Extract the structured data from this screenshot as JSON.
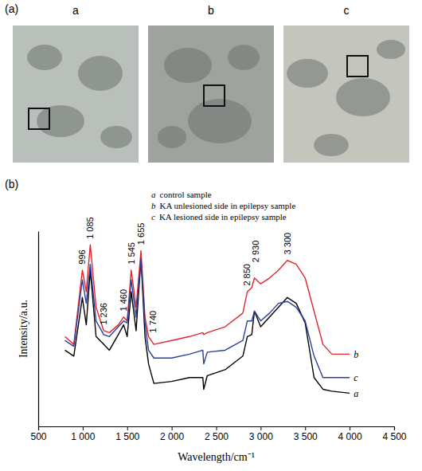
{
  "images": {
    "label": "(a)",
    "panels": [
      "a",
      "b",
      "c"
    ]
  },
  "chart_data": {
    "type": "line",
    "panel_label": "(b)",
    "x_label": "Wavelength/cm⁻¹",
    "y_label": "Intensity/a.u.",
    "xlim": [
      500,
      4500
    ],
    "xticks": [
      500,
      {
        "value": 1000,
        "label": "1 000"
      },
      {
        "value": 1500,
        "label": "1 500"
      },
      {
        "value": 2000,
        "label": "2 000"
      },
      {
        "value": 2500,
        "label": "2 500"
      },
      {
        "value": 3000,
        "label": "3 000"
      },
      {
        "value": 3500,
        "label": "3 500"
      },
      {
        "value": 4000,
        "label": "4 000"
      },
      {
        "value": 4500,
        "label": "4 500"
      }
    ],
    "ylim": [
      0,
      100
    ],
    "tick_labels": "x",
    "grid": false,
    "legend": "top",
    "x": [
      800,
      900,
      996,
      1040,
      1085,
      1150,
      1236,
      1300,
      1400,
      1460,
      1500,
      1545,
      1600,
      1655,
      1700,
      1740,
      1800,
      2000,
      2200,
      2350,
      2360,
      2400,
      2600,
      2800,
      2850,
      2900,
      2930,
      3000,
      3100,
      3200,
      3300,
      3400,
      3500,
      3600,
      3700,
      3800,
      4000
    ],
    "series": [
      {
        "key": "a",
        "name": "control sample",
        "color": "#000000",
        "values": [
          39,
          36,
          66,
          52,
          80,
          46,
          42,
          39,
          47,
          52,
          46,
          69,
          49,
          86,
          46,
          32,
          22,
          23,
          25,
          25,
          19,
          26,
          29,
          36,
          46,
          47,
          59,
          51,
          56,
          61,
          66,
          63,
          53,
          25,
          19,
          18,
          17
        ]
      },
      {
        "key": "b",
        "name": "KA unlesioned side in epilepsy sample",
        "color": "#e3262b",
        "values": [
          46,
          42,
          80,
          69,
          93,
          61,
          49,
          48,
          52,
          56,
          54,
          80,
          61,
          90,
          56,
          46,
          42,
          44,
          46,
          48,
          47,
          48,
          51,
          58,
          69,
          71,
          76,
          73,
          76,
          80,
          85,
          83,
          76,
          59,
          42,
          37,
          37
        ]
      },
      {
        "key": "c",
        "name": "KA lesioned side in epilepsy sample",
        "color": "#2b3f9e",
        "values": [
          44,
          41,
          75,
          63,
          83,
          54,
          47,
          46,
          51,
          54,
          53,
          75,
          56,
          86,
          53,
          39,
          35,
          35,
          37,
          39,
          32,
          38,
          39,
          44,
          54,
          54,
          59,
          54,
          58,
          63,
          64,
          61,
          54,
          36,
          25,
          25,
          25
        ]
      }
    ],
    "annotations": [
      {
        "x": 996,
        "y": 83,
        "text": "996"
      },
      {
        "x": 1085,
        "y": 96,
        "text": "1 085"
      },
      {
        "x": 1236,
        "y": 52,
        "text": "1 236"
      },
      {
        "x": 1460,
        "y": 59,
        "text": "1 460"
      },
      {
        "x": 1545,
        "y": 83,
        "text": "1 545"
      },
      {
        "x": 1655,
        "y": 93,
        "text": "1 655"
      },
      {
        "x": 1790,
        "y": 48,
        "text": "1 740"
      },
      {
        "x": 2850,
        "y": 72,
        "text": "2 850"
      },
      {
        "x": 2940,
        "y": 84,
        "text": "2 930"
      },
      {
        "x": 3300,
        "y": 88,
        "text": "3 300"
      }
    ]
  }
}
